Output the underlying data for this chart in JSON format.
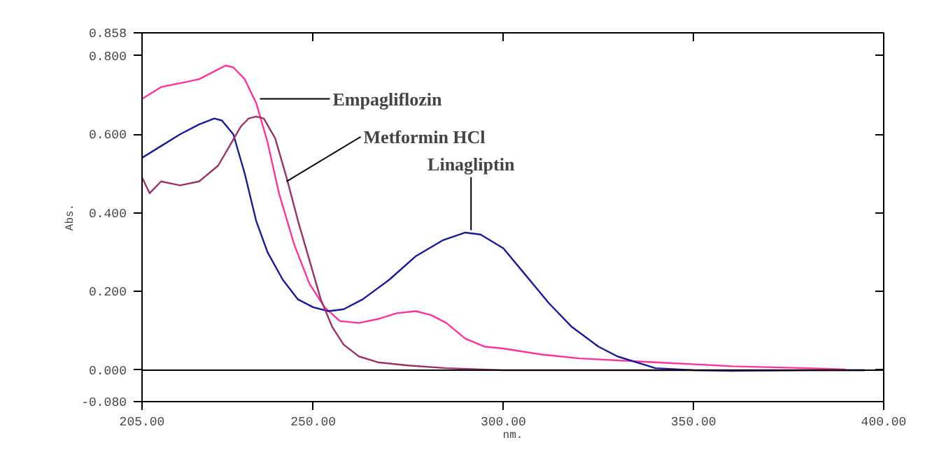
{
  "chart_data": {
    "type": "line",
    "xlabel": "nm.",
    "ylabel": "Abs.",
    "xlim": [
      205,
      400
    ],
    "ylim": [
      -0.08,
      0.858
    ],
    "xticks": [
      {
        "value": 205,
        "label": "205.00"
      },
      {
        "value": 250,
        "label": "250.00"
      },
      {
        "value": 300,
        "label": "300.00"
      },
      {
        "value": 350,
        "label": "350.00"
      },
      {
        "value": 400,
        "label": "400.00"
      }
    ],
    "yticks": [
      {
        "value": -0.08,
        "label": "-0.080"
      },
      {
        "value": 0,
        "label": "0.000"
      },
      {
        "value": 0.2,
        "label": "0.200"
      },
      {
        "value": 0.4,
        "label": "0.400"
      },
      {
        "value": 0.6,
        "label": "0.600"
      },
      {
        "value": 0.8,
        "label": "0.800"
      },
      {
        "value": 0.858,
        "label": "0.858"
      }
    ],
    "grid": false,
    "marker": "none",
    "line_style": "solid",
    "ref_lines": [
      {
        "axis": "y",
        "value": 0,
        "color": "#000000"
      }
    ],
    "series": [
      {
        "color": "#ff3399",
        "x": [
          205,
          210,
          215,
          220,
          225,
          227,
          229,
          232,
          235,
          238,
          241,
          245,
          249,
          253,
          257,
          262,
          267,
          272,
          277,
          281,
          285,
          290,
          295,
          300,
          310,
          320,
          340,
          360,
          380,
          390
        ],
        "values": [
          0.69,
          0.72,
          0.73,
          0.74,
          0.765,
          0.775,
          0.77,
          0.74,
          0.68,
          0.58,
          0.45,
          0.32,
          0.22,
          0.16,
          0.125,
          0.12,
          0.13,
          0.145,
          0.15,
          0.14,
          0.12,
          0.08,
          0.06,
          0.055,
          0.04,
          0.03,
          0.02,
          0.01,
          0.005,
          0.002
        ]
      },
      {
        "color": "#1a1a99",
        "x": [
          205,
          210,
          215,
          220,
          224,
          226,
          229,
          232,
          235,
          238,
          242,
          246,
          250,
          254,
          258,
          263,
          270,
          277,
          284,
          290,
          294,
          300,
          306,
          312,
          318,
          325,
          330,
          340,
          350,
          360,
          380,
          395
        ],
        "values": [
          0.54,
          0.57,
          0.6,
          0.625,
          0.64,
          0.635,
          0.6,
          0.5,
          0.38,
          0.3,
          0.23,
          0.18,
          0.16,
          0.15,
          0.155,
          0.18,
          0.23,
          0.29,
          0.33,
          0.35,
          0.345,
          0.31,
          0.24,
          0.17,
          0.11,
          0.06,
          0.035,
          0.005,
          0.0,
          -0.002,
          0.0,
          0.0
        ]
      },
      {
        "color": "#993366",
        "x": [
          205,
          207,
          210,
          215,
          220,
          225,
          228,
          231,
          233,
          235,
          237,
          240,
          243,
          246,
          249,
          252,
          255,
          258,
          262,
          267,
          275,
          285,
          300,
          350,
          395
        ],
        "values": [
          0.49,
          0.45,
          0.48,
          0.47,
          0.48,
          0.52,
          0.57,
          0.62,
          0.64,
          0.645,
          0.64,
          0.59,
          0.49,
          0.38,
          0.28,
          0.18,
          0.11,
          0.065,
          0.035,
          0.02,
          0.012,
          0.005,
          0.0,
          0.0,
          0.0
        ]
      }
    ],
    "annotations": [
      {
        "text": "Empagliflozin",
        "x": 236,
        "y": 0.69
      },
      {
        "text": "Metformin HCl",
        "x": 243,
        "y": 0.48
      },
      {
        "text": "Linagliptin",
        "x": 291.5,
        "y": 0.356
      }
    ]
  }
}
